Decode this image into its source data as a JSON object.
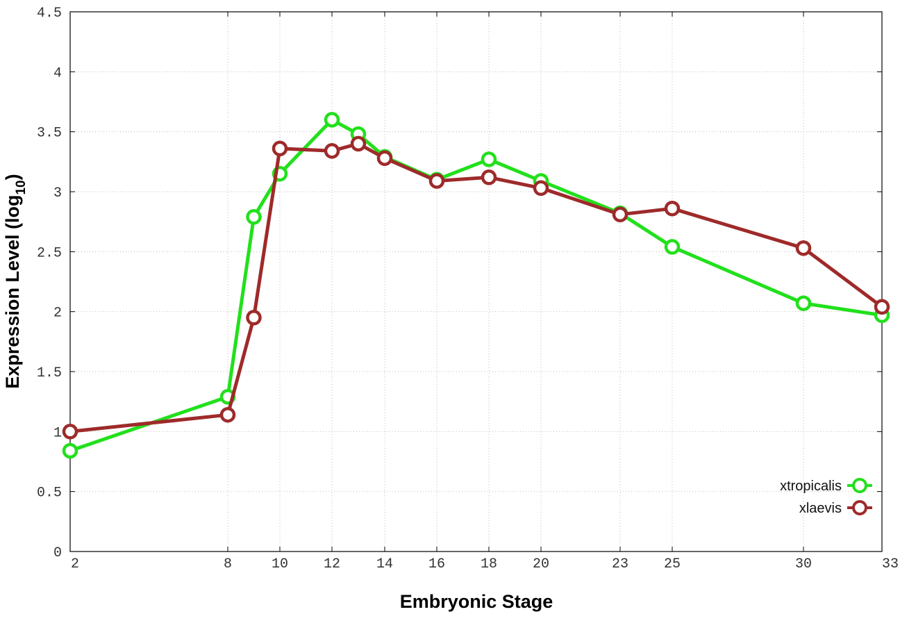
{
  "chart_data": {
    "type": "line",
    "xlabel": "Embryonic Stage",
    "ylabel": "Expression Level (log",
    "ylabel_subscript": "10",
    "ylabel_suffix": ")",
    "x_ticks": [
      2,
      8,
      10,
      12,
      14,
      16,
      18,
      20,
      23,
      25,
      30,
      33
    ],
    "xlim": [
      2,
      33
    ],
    "y_ticks": [
      "0",
      "0.5",
      "1",
      "1.5",
      "2",
      "2.5",
      "3",
      "3.5",
      "4",
      "4.5"
    ],
    "ylim": [
      0,
      4.5
    ],
    "grid": true,
    "legend_position": "bottom-right",
    "series": [
      {
        "name": "xtropicalis",
        "color": "#22e01c",
        "points": [
          [
            2,
            0.84
          ],
          [
            8,
            1.29
          ],
          [
            9,
            2.79
          ],
          [
            10,
            3.15
          ],
          [
            12,
            3.6
          ],
          [
            13,
            3.48
          ],
          [
            14,
            3.29
          ],
          [
            16,
            3.1
          ],
          [
            18,
            3.27
          ],
          [
            20,
            3.09
          ],
          [
            23,
            2.82
          ],
          [
            25,
            2.54
          ],
          [
            30,
            2.07
          ],
          [
            33,
            1.97
          ]
        ]
      },
      {
        "name": "xlaevis",
        "color": "#9e2a2a",
        "points": [
          [
            2,
            1.0
          ],
          [
            8,
            1.14
          ],
          [
            9,
            1.95
          ],
          [
            10,
            3.36
          ],
          [
            12,
            3.34
          ],
          [
            13,
            3.4
          ],
          [
            14,
            3.28
          ],
          [
            16,
            3.09
          ],
          [
            18,
            3.12
          ],
          [
            20,
            3.03
          ],
          [
            23,
            2.81
          ],
          [
            25,
            2.86
          ],
          [
            30,
            2.53
          ],
          [
            33,
            2.04
          ]
        ]
      }
    ]
  }
}
